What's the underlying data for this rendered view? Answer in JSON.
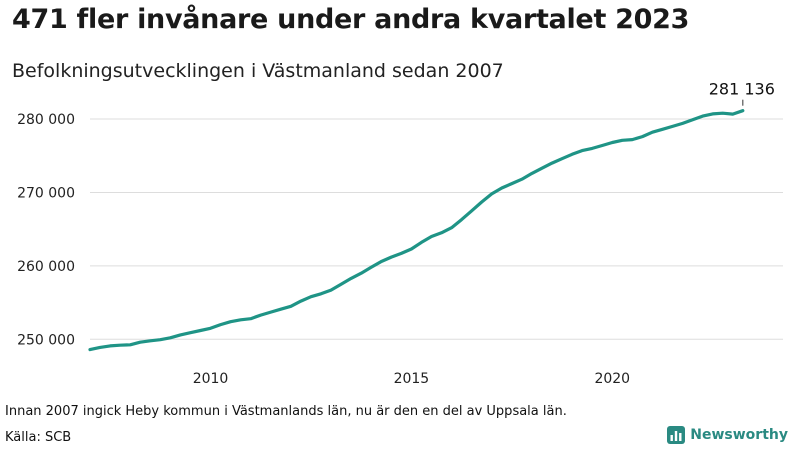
{
  "header": {
    "title": "471 fler invånare under andra kvartalet 2023",
    "subtitle": "Befolkningsutvecklingen i Västmanland sedan 2007"
  },
  "footer": {
    "note": "Innan 2007 ingick Heby kommun i Västmanlands län, nu är den en del av Uppsala län.",
    "source": "Källa: SCB",
    "brand": "Newsworthy"
  },
  "colors": {
    "line": "#1f9486",
    "grid": "#dddddd",
    "brand": "#2a8a82"
  },
  "chart_data": {
    "type": "line",
    "title": "471 fler invånare under andra kvartalet 2023",
    "subtitle": "Befolkningsutvecklingen i Västmanland sedan 2007",
    "xlabel": "",
    "ylabel": "",
    "x_ticks": [
      2010,
      2015,
      2020
    ],
    "y_ticks": [
      250000,
      260000,
      270000,
      280000
    ],
    "y_tick_labels": [
      "250 000",
      "260 000",
      "270 000",
      "280 000"
    ],
    "xlim": [
      2007.0,
      2024.25
    ],
    "ylim": [
      246500,
      283000
    ],
    "grid": "horizontal",
    "last_value_label": "281 136",
    "series": [
      {
        "x": [
          2007.0,
          2007.25,
          2007.5,
          2007.75,
          2008.0,
          2008.25,
          2008.5,
          2008.75,
          2009.0,
          2009.25,
          2009.5,
          2009.75,
          2010.0,
          2010.25,
          2010.5,
          2010.75,
          2011.0,
          2011.25,
          2011.5,
          2011.75,
          2012.0,
          2012.25,
          2012.5,
          2012.75,
          2013.0,
          2013.25,
          2013.5,
          2013.75,
          2014.0,
          2014.25,
          2014.5,
          2014.75,
          2015.0,
          2015.25,
          2015.5,
          2015.75,
          2016.0,
          2016.25,
          2016.5,
          2016.75,
          2017.0,
          2017.25,
          2017.5,
          2017.75,
          2018.0,
          2018.25,
          2018.5,
          2018.75,
          2019.0,
          2019.25,
          2019.5,
          2019.75,
          2020.0,
          2020.25,
          2020.5,
          2020.75,
          2021.0,
          2021.25,
          2021.5,
          2021.75,
          2022.0,
          2022.25,
          2022.5,
          2022.75,
          2023.0,
          2023.25
        ],
        "values": [
          248600,
          248900,
          249100,
          249200,
          249250,
          249600,
          249800,
          249950,
          250200,
          250600,
          250900,
          251200,
          251500,
          252000,
          252400,
          252650,
          252800,
          253300,
          253700,
          254100,
          254500,
          255200,
          255800,
          256200,
          256700,
          257500,
          258300,
          259000,
          259800,
          260600,
          261200,
          261700,
          262300,
          263200,
          264000,
          264500,
          265200,
          266300,
          267500,
          268700,
          269800,
          270600,
          271200,
          271800,
          272600,
          273300,
          274000,
          274600,
          275200,
          275700,
          276000,
          276400,
          276800,
          277100,
          277200,
          277600,
          278200,
          278600,
          279000,
          279400,
          279900,
          280400,
          280700,
          280800,
          280665,
          281136
        ]
      }
    ]
  }
}
